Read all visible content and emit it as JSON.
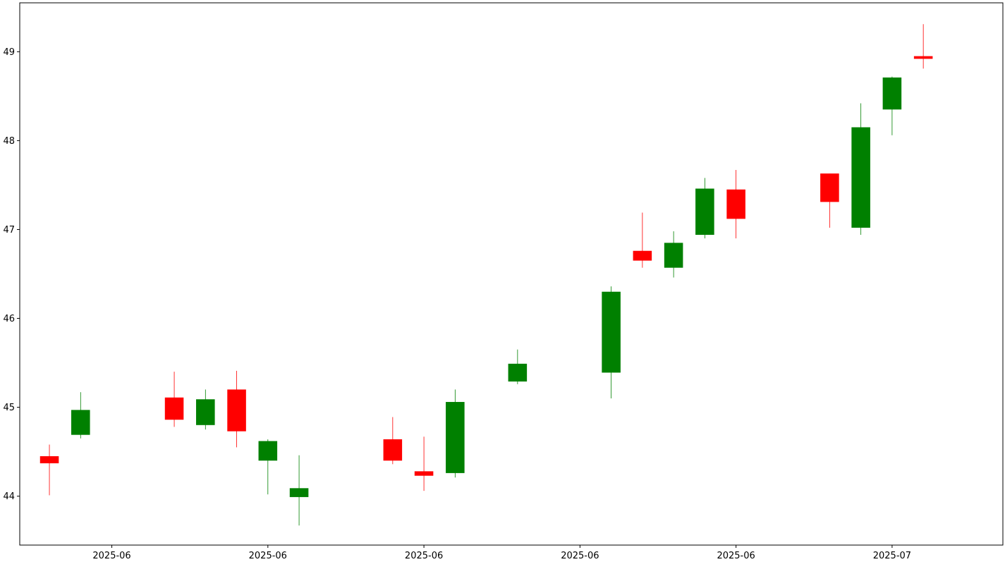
{
  "chart_data": {
    "type": "candlestick",
    "title": "",
    "xlabel": "",
    "ylabel": "",
    "ylim": [
      43.45,
      49.55
    ],
    "xlim": [
      -0.95,
      30.55
    ],
    "yticks": [
      44,
      45,
      46,
      47,
      48,
      49
    ],
    "yticks_labels": [
      "44",
      "45",
      "46",
      "47",
      "48",
      "49"
    ],
    "xticks": [
      {
        "pos": 2.0,
        "label": "2025-06"
      },
      {
        "pos": 7.0,
        "label": "2025-06"
      },
      {
        "pos": 12.0,
        "label": "2025-06"
      },
      {
        "pos": 17.0,
        "label": "2025-06"
      },
      {
        "pos": 22.0,
        "label": "2025-06"
      },
      {
        "pos": 27.0,
        "label": "2025-07"
      }
    ],
    "grid": false,
    "legend": "none",
    "colors": {
      "up": "#008000",
      "down": "#ff0000"
    },
    "candles": [
      {
        "x": 0,
        "open": 44.45,
        "high": 44.58,
        "low": 44.01,
        "close": 44.37
      },
      {
        "x": 1,
        "open": 44.69,
        "high": 45.17,
        "low": 44.65,
        "close": 44.97
      },
      {
        "x": 4,
        "open": 45.11,
        "high": 45.4,
        "low": 44.78,
        "close": 44.86
      },
      {
        "x": 5,
        "open": 44.8,
        "high": 45.2,
        "low": 44.75,
        "close": 45.09
      },
      {
        "x": 6,
        "open": 45.2,
        "high": 45.41,
        "low": 44.55,
        "close": 44.73
      },
      {
        "x": 7,
        "open": 44.4,
        "high": 44.64,
        "low": 44.02,
        "close": 44.62
      },
      {
        "x": 8,
        "open": 43.99,
        "high": 44.46,
        "low": 43.67,
        "close": 44.09
      },
      {
        "x": 11,
        "open": 44.64,
        "high": 44.89,
        "low": 44.36,
        "close": 44.4
      },
      {
        "x": 12,
        "open": 44.28,
        "high": 44.67,
        "low": 44.06,
        "close": 44.23
      },
      {
        "x": 13,
        "open": 44.26,
        "high": 45.2,
        "low": 44.21,
        "close": 45.06
      },
      {
        "x": 15,
        "open": 45.29,
        "high": 45.65,
        "low": 45.26,
        "close": 45.49
      },
      {
        "x": 18,
        "open": 45.39,
        "high": 46.36,
        "low": 45.1,
        "close": 46.3
      },
      {
        "x": 19,
        "open": 46.76,
        "high": 47.19,
        "low": 46.57,
        "close": 46.65
      },
      {
        "x": 20,
        "open": 46.57,
        "high": 46.98,
        "low": 46.46,
        "close": 46.85
      },
      {
        "x": 21,
        "open": 46.94,
        "high": 47.58,
        "low": 46.9,
        "close": 47.46
      },
      {
        "x": 22,
        "open": 47.45,
        "high": 47.67,
        "low": 46.9,
        "close": 47.12
      },
      {
        "x": 25,
        "open": 47.63,
        "high": 47.63,
        "low": 47.02,
        "close": 47.31
      },
      {
        "x": 26,
        "open": 47.02,
        "high": 48.42,
        "low": 46.94,
        "close": 48.15
      },
      {
        "x": 27,
        "open": 48.35,
        "high": 48.72,
        "low": 48.06,
        "close": 48.71
      },
      {
        "x": 28,
        "open": 48.95,
        "high": 49.31,
        "low": 48.81,
        "close": 48.92
      }
    ]
  }
}
